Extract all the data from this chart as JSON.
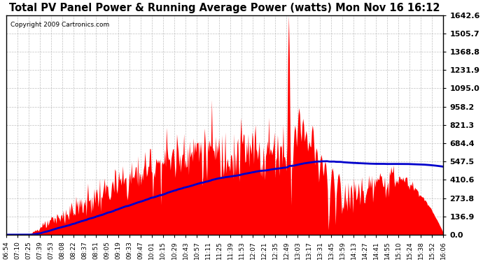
{
  "title": "Total PV Panel Power & Running Average Power (watts) Mon Nov 16 16:12",
  "copyright": "Copyright 2009 Cartronics.com",
  "background_color": "#ffffff",
  "plot_bg_color": "#ffffff",
  "grid_color": "#b0b0b0",
  "fill_color": "#ff0000",
  "line_color": "#0000cc",
  "ymax": 1642.6,
  "ymin": 0.0,
  "yticks": [
    0.0,
    136.9,
    273.8,
    410.6,
    547.5,
    684.4,
    821.3,
    958.2,
    1095.0,
    1231.9,
    1368.8,
    1505.7,
    1642.6
  ],
  "x_labels": [
    "06:54",
    "07:10",
    "07:25",
    "07:39",
    "07:53",
    "08:08",
    "08:22",
    "08:37",
    "08:51",
    "09:05",
    "09:19",
    "09:33",
    "09:47",
    "10:01",
    "10:15",
    "10:29",
    "10:43",
    "10:57",
    "11:11",
    "11:25",
    "11:39",
    "11:53",
    "12:07",
    "12:21",
    "12:35",
    "12:49",
    "13:03",
    "13:17",
    "13:31",
    "13:45",
    "13:59",
    "14:13",
    "14:27",
    "14:41",
    "14:55",
    "15:10",
    "15:24",
    "15:38",
    "15:52",
    "16:06"
  ]
}
